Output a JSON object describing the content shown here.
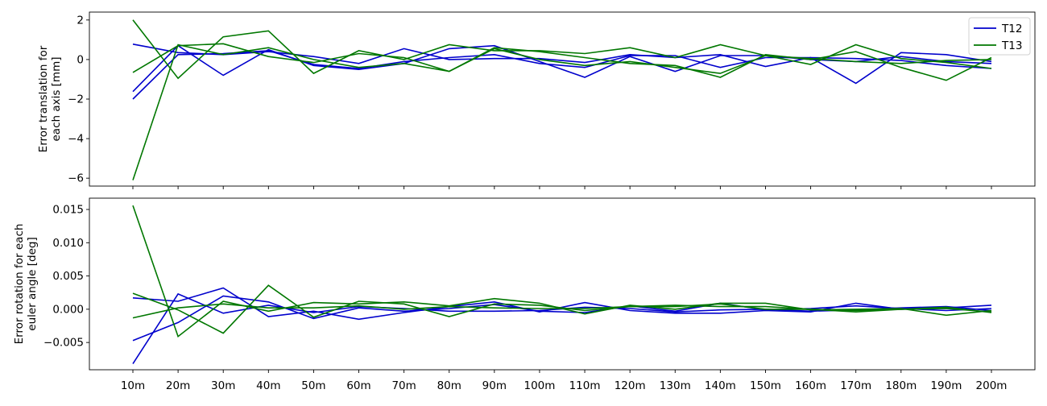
{
  "chart_data": [
    {
      "type": "line",
      "title": "",
      "xlabel": "",
      "ylabel_lines": [
        "Error translation for",
        "each axis [mm]"
      ],
      "categories": [
        "10m",
        "20m",
        "30m",
        "40m",
        "50m",
        "60m",
        "70m",
        "80m",
        "90m",
        "100m",
        "110m",
        "120m",
        "130m",
        "140m",
        "150m",
        "160m",
        "170m",
        "180m",
        "190m",
        "200m"
      ],
      "yticks": [
        2,
        0,
        -2,
        -4,
        -6
      ],
      "ylim": [
        -6.4,
        2.4
      ],
      "grid": false,
      "legend_position": "top-right",
      "legend": [
        {
          "label": "T12",
          "color": "#0000cc"
        },
        {
          "label": "T13",
          "color": "#007700"
        }
      ],
      "series": [
        {
          "group": "T12",
          "color": "#0000cc",
          "values": [
            0.78,
            0.35,
            0.25,
            0.4,
            0.15,
            -0.2,
            0.55,
            0.0,
            0.05,
            0.05,
            -0.15,
            0.25,
            0.1,
            0.25,
            -0.35,
            0.1,
            -1.2,
            0.35,
            0.25,
            -0.1
          ]
        },
        {
          "group": "T12",
          "color": "#0000cc",
          "values": [
            -1.62,
            0.7,
            -0.8,
            0.5,
            -0.3,
            -0.5,
            -0.2,
            0.55,
            0.7,
            -0.1,
            -0.9,
            0.15,
            -0.6,
            0.2,
            0.2,
            0.0,
            -0.1,
            0.15,
            -0.1,
            -0.2
          ]
        },
        {
          "group": "T12",
          "color": "#0000cc",
          "values": [
            -2.0,
            0.25,
            0.3,
            0.45,
            -0.25,
            -0.45,
            -0.1,
            0.1,
            0.25,
            -0.2,
            -0.4,
            0.2,
            0.2,
            -0.4,
            0.1,
            0.1,
            0.05,
            -0.05,
            -0.3,
            -0.45
          ]
        },
        {
          "group": "T13",
          "color": "#007700",
          "values": [
            2.0,
            -0.95,
            1.15,
            1.45,
            -0.7,
            0.45,
            0.0,
            0.75,
            0.45,
            0.45,
            0.3,
            0.6,
            0.1,
            0.75,
            0.2,
            -0.25,
            0.75,
            0.05,
            -0.15,
            -0.45
          ]
        },
        {
          "group": "T13",
          "color": "#007700",
          "values": [
            -0.65,
            0.7,
            0.8,
            0.15,
            -0.15,
            0.3,
            0.1,
            -0.6,
            0.6,
            0.4,
            0.1,
            -0.2,
            -0.3,
            -0.9,
            0.25,
            0.0,
            0.4,
            -0.4,
            -1.05,
            0.1
          ]
        },
        {
          "group": "T13",
          "color": "#007700",
          "values": [
            -6.1,
            0.75,
            0.25,
            0.6,
            0.0,
            -0.4,
            -0.2,
            -0.6,
            0.55,
            0.0,
            -0.3,
            -0.1,
            -0.4,
            -0.7,
            0.2,
            0.05,
            -0.1,
            -0.2,
            -0.05,
            0.0
          ]
        }
      ]
    },
    {
      "type": "line",
      "title": "",
      "xlabel": "",
      "ylabel_lines": [
        "Error rotation for each",
        "euler angle [deg]"
      ],
      "categories": [
        "10m",
        "20m",
        "30m",
        "40m",
        "50m",
        "60m",
        "70m",
        "80m",
        "90m",
        "100m",
        "110m",
        "120m",
        "130m",
        "140m",
        "150m",
        "160m",
        "170m",
        "180m",
        "190m",
        "200m"
      ],
      "yticks": [
        0.015,
        0.01,
        0.005,
        0.0,
        -0.005
      ],
      "ytick_labels": [
        "0.015",
        "0.010",
        "0.005",
        "0.000",
        "−0.005"
      ],
      "ylim": [
        -0.0091,
        0.0167
      ],
      "grid": false,
      "series": [
        {
          "group": "T12",
          "color": "#0000cc",
          "values": [
            0.0017,
            0.0012,
            0.0032,
            -0.0011,
            -0.0003,
            -0.0015,
            -0.0005,
            0.0004,
            0.0011,
            -0.0004,
            0.001,
            -0.0002,
            -0.0006,
            -0.0006,
            -0.0002,
            -0.0004,
            0.0009,
            0.0,
            0.0002,
            0.0006
          ]
        },
        {
          "group": "T12",
          "color": "#0000cc",
          "values": [
            -0.0047,
            -0.002,
            0.002,
            0.0011,
            -0.0014,
            0.0002,
            -0.0003,
            0.0001,
            0.0007,
            -0.0003,
            -0.0005,
            0.0005,
            -0.0003,
            0.0009,
            -0.0001,
            0.0001,
            0.0005,
            0.0001,
            -0.0002,
            0.0001
          ]
        },
        {
          "group": "T12",
          "color": "#0000cc",
          "values": [
            -0.0082,
            0.0023,
            -0.0006,
            0.0006,
            -0.0005,
            0.0004,
            0.0001,
            -0.0003,
            -0.0003,
            -0.0002,
            0.0003,
            0.0001,
            -0.0004,
            -0.0001,
            0.0,
            -0.0003,
            -0.0001,
            0.0002,
            0.0004,
            -0.0002
          ]
        },
        {
          "group": "T13",
          "color": "#007700",
          "values": [
            0.0156,
            -0.0041,
            0.0012,
            -0.0003,
            0.001,
            0.0008,
            0.0011,
            0.0005,
            0.0016,
            0.0009,
            -0.0007,
            0.0006,
            0.0,
            0.0009,
            0.0009,
            -0.0001,
            0.0,
            0.0001,
            -0.0009,
            -0.0002
          ]
        },
        {
          "group": "T13",
          "color": "#007700",
          "values": [
            0.0024,
            -0.0001,
            -0.0036,
            0.0036,
            -0.0012,
            0.0012,
            0.0008,
            -0.0011,
            0.0008,
            0.0006,
            -0.0002,
            0.0004,
            0.0004,
            0.0008,
            0.0,
            0.0,
            -0.0002,
            0.0,
            0.0001,
            -0.0004
          ]
        },
        {
          "group": "T13",
          "color": "#007700",
          "values": [
            -0.0013,
            0.0002,
            0.0008,
            0.0002,
            0.0002,
            0.0005,
            0.0,
            0.0004,
            0.0002,
            0.0001,
            0.0001,
            0.0004,
            0.0006,
            0.0004,
            0.0004,
            0.0,
            -0.0004,
            0.0,
            0.0003,
            -0.0005
          ]
        }
      ]
    }
  ]
}
